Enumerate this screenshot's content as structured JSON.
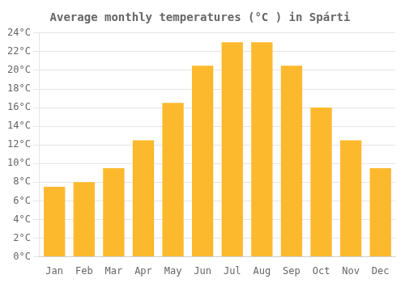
{
  "chart_data": {
    "type": "bar",
    "title": "Average monthly temperatures (°C ) in Spárti",
    "categories": [
      "Jan",
      "Feb",
      "Mar",
      "Apr",
      "May",
      "Jun",
      "Jul",
      "Aug",
      "Sep",
      "Oct",
      "Nov",
      "Dec"
    ],
    "values": [
      7.5,
      8.0,
      9.5,
      12.5,
      16.5,
      20.5,
      23.0,
      23.0,
      20.5,
      16.0,
      12.5,
      9.5
    ],
    "color": "#FDB92E",
    "ylim": [
      0,
      24
    ],
    "yticks": [
      {
        "value": 0,
        "label": "0°C"
      },
      {
        "value": 2,
        "label": "2°C"
      },
      {
        "value": 4,
        "label": "4°C"
      },
      {
        "value": 6,
        "label": "6°C"
      },
      {
        "value": 8,
        "label": "8°C"
      },
      {
        "value": 10,
        "label": "10°C"
      },
      {
        "value": 12,
        "label": "12°C"
      },
      {
        "value": 14,
        "label": "14°C"
      },
      {
        "value": 16,
        "label": "16°C"
      },
      {
        "value": 18,
        "label": "18°C"
      },
      {
        "value": 20,
        "label": "20°C"
      },
      {
        "value": 22,
        "label": "22°C"
      },
      {
        "value": 24,
        "label": "24°C"
      }
    ],
    "grid": true
  }
}
